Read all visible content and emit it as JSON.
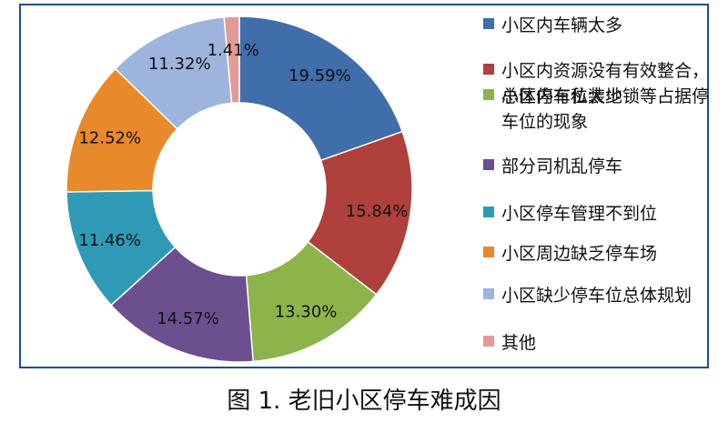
{
  "caption": "图 1. 老旧小区停车难成因",
  "chart_data": {
    "type": "pie",
    "donut": true,
    "categories": [
      "小区内车辆太多",
      "小区内资源没有有效整合，总体停车位太少",
      "小区内有私装地锁等占据停车位的现象",
      "部分司机乱停车",
      "小区停车管理不到位",
      "小区周边缺乏停车场",
      "小区缺少停车位总体规划",
      "其他"
    ],
    "values": [
      19.59,
      15.84,
      13.3,
      14.57,
      11.46,
      12.52,
      11.32,
      1.41
    ],
    "labels": [
      "19.59%",
      "15.84%",
      "13.30%",
      "14.57%",
      "11.46%",
      "12.52%",
      "11.32%",
      "1.41%"
    ],
    "colors": [
      "#3f6eaa",
      "#b0403c",
      "#8db44b",
      "#6b4f8f",
      "#2e9ab5",
      "#e8892b",
      "#9db4dc",
      "#e19a98"
    ],
    "legend_position": "right"
  }
}
